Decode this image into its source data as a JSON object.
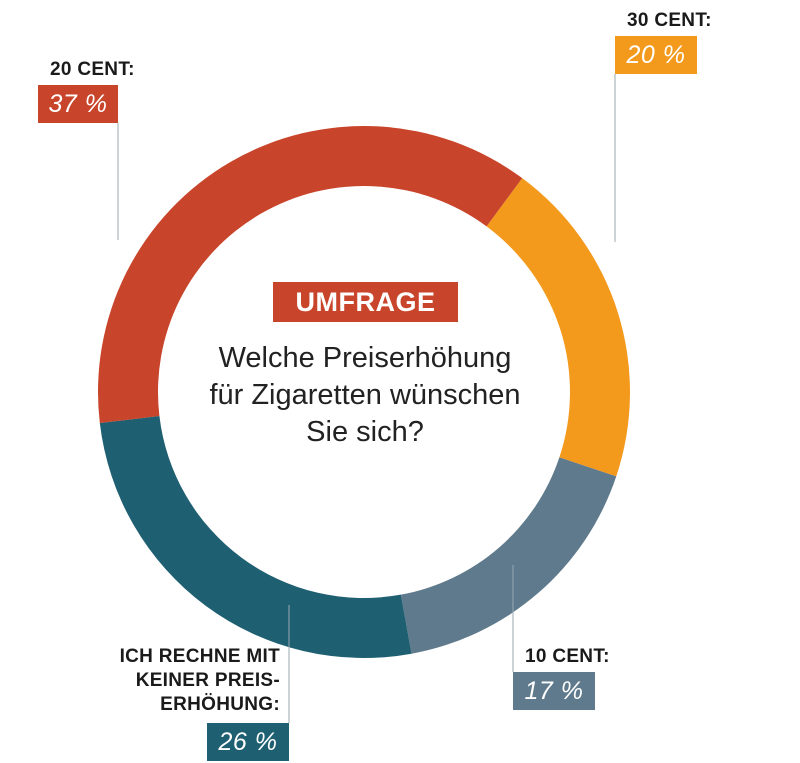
{
  "center": {
    "badge": "UMFRAGE",
    "question_lines": [
      "Welche Preiserhöhung",
      "für Zigaretten wünschen",
      "Sie sich?"
    ]
  },
  "colors": {
    "badge": "#c8442a",
    "leader": "#9aa8b2",
    "text": "#1a1a1a"
  },
  "chart_data": {
    "type": "pie",
    "style": "donut",
    "slices": [
      {
        "label": "30 CENT:",
        "value": 20,
        "value_label": "20 %",
        "color": "#f39a1d"
      },
      {
        "label": "10 CENT:",
        "value": 17,
        "value_label": "17 %",
        "color": "#5f7a8c"
      },
      {
        "label": "ICH RECHNE MIT KEINER PREIS-ERHÖHUNG:",
        "label_lines": [
          "ICH RECHNE MIT",
          "KEINER PREIS-",
          "ERHÖHUNG:"
        ],
        "value": 26,
        "value_label": "26 %",
        "color": "#1f5f72"
      },
      {
        "label": "20 CENT:",
        "value": 37,
        "value_label": "37 %",
        "color": "#c8442a"
      }
    ]
  }
}
